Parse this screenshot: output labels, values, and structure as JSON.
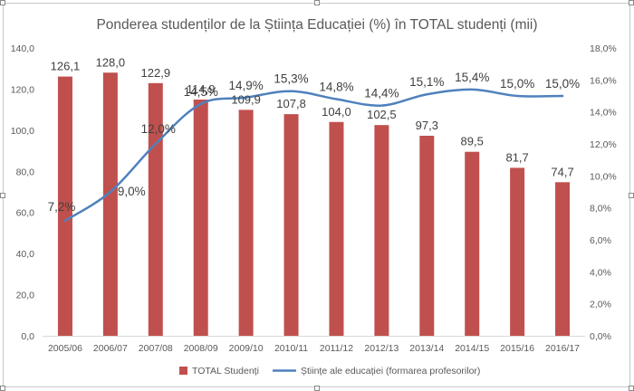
{
  "chart_data": {
    "type": "bar",
    "title": "Ponderea studenților de la Știința Educației (%) în TOTAL studenți (mii)",
    "categories": [
      "2005/06",
      "2006/07",
      "2007/08",
      "2008/09",
      "2009/10",
      "2010/11",
      "2011/12",
      "2012/13",
      "2013/14",
      "2014/15",
      "2015/16",
      "2016/17"
    ],
    "series": [
      {
        "name": "TOTAL Studenți",
        "type": "bar",
        "axis": "left",
        "color": "#c0504d",
        "values": [
          126.1,
          128.0,
          122.9,
          114.9,
          109.9,
          107.8,
          104.0,
          102.5,
          97.3,
          89.5,
          81.7,
          74.7
        ],
        "labels": [
          "126,1",
          "128,0",
          "122,9",
          "114,9",
          "109,9",
          "107,8",
          "104,0",
          "102,5",
          "97,3",
          "89,5",
          "81,7",
          "74,7"
        ]
      },
      {
        "name": "Științe ale educației (formarea profesorilor)",
        "type": "line",
        "axis": "right",
        "color": "#4f81bd",
        "values": [
          7.2,
          9.0,
          12.0,
          14.5,
          14.9,
          15.3,
          14.8,
          14.4,
          15.1,
          15.4,
          15.0,
          15.0
        ],
        "labels": [
          "7,2%",
          "9,0%",
          "12,0%",
          "14,5%",
          "14,9%",
          "15,3%",
          "14,8%",
          "14,4%",
          "15,1%",
          "15,4%",
          "15,0%",
          "15,0%"
        ]
      }
    ],
    "y_left": {
      "ylim": [
        0,
        140
      ],
      "ticks": [
        "0,0",
        "20,0",
        "40,0",
        "60,0",
        "80,0",
        "100,0",
        "120,0",
        "140,0"
      ]
    },
    "y_right": {
      "ylim": [
        0,
        18
      ],
      "ticks": [
        "0,0%",
        "2,0%",
        "4,0%",
        "6,0%",
        "8,0%",
        "10,0%",
        "12,0%",
        "14,0%",
        "16,0%",
        "18,0%"
      ]
    },
    "grid": false,
    "legend_position": "bottom"
  }
}
